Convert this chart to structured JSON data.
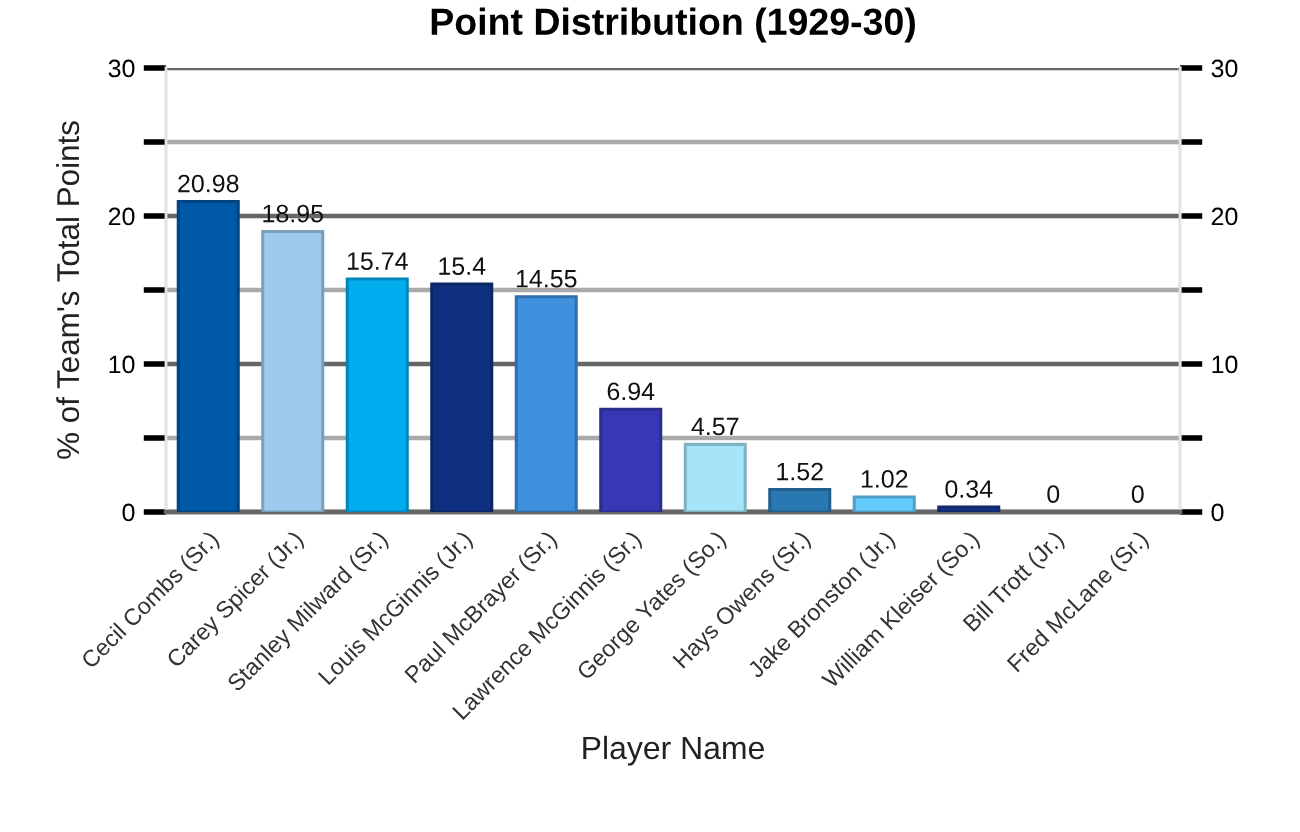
{
  "chart_data": {
    "type": "bar",
    "title": "Point Distribution (1929-30)",
    "xlabel": "Player Name",
    "ylabel": "% of Team's Total Points",
    "categories": [
      "Cecil Combs (Sr.)",
      "Carey Spicer (Jr.)",
      "Stanley Milward (Sr.)",
      "Louis McGinnis (Jr.)",
      "Paul McBrayer (Sr.)",
      "Lawrence McGinnis (Sr.)",
      "George Yates (So.)",
      "Hays Owens (Sr.)",
      "Jake Bronston (Jr.)",
      "William Kleiser (So.)",
      "Bill Trott (Jr.)",
      "Fred McLane (Sr.)"
    ],
    "values": [
      20.98,
      18.95,
      15.74,
      15.4,
      14.55,
      6.94,
      4.57,
      1.52,
      1.02,
      0.34,
      0,
      0
    ],
    "colors": [
      "#0059a6",
      "#9ecbed",
      "#00aeef",
      "#0f2f80",
      "#3f90dd",
      "#3838b5",
      "#a6e4f9",
      "#2a78b2",
      "#66ccff",
      "#16338a",
      "#0059a6",
      "#9ecbed"
    ],
    "ylim": [
      0,
      30
    ],
    "yticks": [
      0,
      {
        "value": 5,
        "label": null
      },
      10,
      {
        "value": 15,
        "label": null
      },
      20,
      {
        "value": 25,
        "label": null
      },
      30
    ],
    "y2lim": [
      0,
      30
    ],
    "y2ticks": [
      0,
      {
        "value": 5,
        "label": null
      },
      10,
      {
        "value": 15,
        "label": null
      },
      20,
      {
        "value": 25,
        "label": null
      },
      30
    ],
    "grid": "y",
    "data_labels": true
  }
}
